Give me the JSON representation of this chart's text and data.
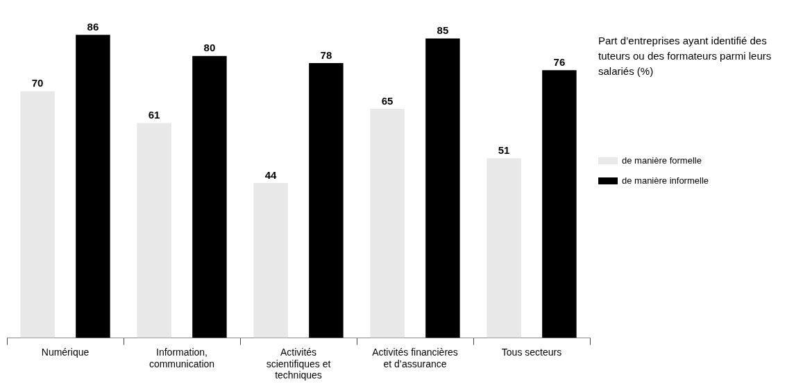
{
  "chart_data": {
    "type": "bar",
    "title": "Part d’entreprises ayant identifié des tuteurs ou des formateurs parmi leurs salariés (%)",
    "categories": [
      "Numérique",
      "Information, communication",
      "Activités scientifiques et techniques",
      "Activités financières et d’assurance",
      "Tous secteurs"
    ],
    "series": [
      {
        "name": "de manière formelle",
        "color": "#e8e8e8",
        "values": [
          70,
          61,
          44,
          65,
          51
        ]
      },
      {
        "name": "de manière informelle",
        "color": "#000000",
        "values": [
          86,
          80,
          78,
          85,
          76
        ]
      }
    ],
    "data_labels": true,
    "grid": false,
    "legend": "right",
    "tick_labels": "x"
  }
}
